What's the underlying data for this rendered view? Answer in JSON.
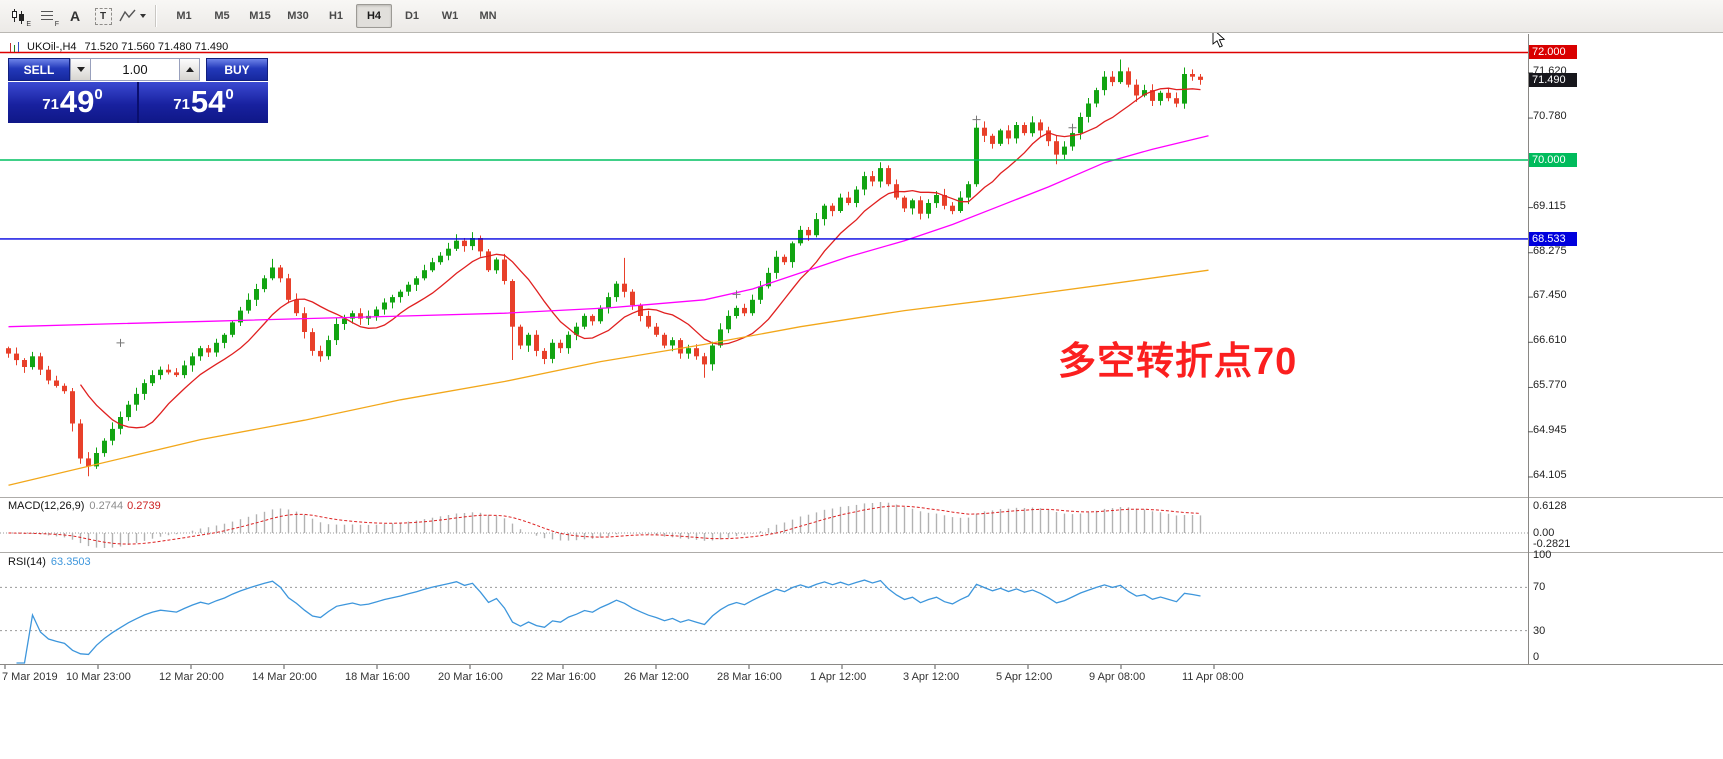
{
  "toolbar": {
    "tool_e_sub": "E",
    "tool_f_sub": "F",
    "text_tool_label": "A",
    "textbox_tool_label": "T",
    "timeframes": [
      {
        "label": "M1",
        "active": false
      },
      {
        "label": "M5",
        "active": false
      },
      {
        "label": "M15",
        "active": false
      },
      {
        "label": "M30",
        "active": false
      },
      {
        "label": "H1",
        "active": false
      },
      {
        "label": "H4",
        "active": true
      },
      {
        "label": "D1",
        "active": false
      },
      {
        "label": "W1",
        "active": false
      },
      {
        "label": "MN",
        "active": false
      }
    ]
  },
  "chart": {
    "header": {
      "symbol": "UKOil-,H4",
      "ohlc": "71.520 71.560 71.480 71.490"
    },
    "trade_panel": {
      "sell_label": "SELL",
      "buy_label": "BUY",
      "volume": "1.00",
      "sell_price": {
        "prefix": "71",
        "main": "49",
        "sup": "0"
      },
      "buy_price": {
        "prefix": "71",
        "main": "54",
        "sup": "0"
      }
    },
    "annotation": {
      "text": "多空转折点70",
      "color": "#fb1f1f"
    },
    "price_axis": {
      "ticks": [
        {
          "label": "71.620",
          "price": 71.62
        },
        {
          "label": "70.780",
          "price": 70.78
        },
        {
          "label": "69.115",
          "price": 69.115
        },
        {
          "label": "68.275",
          "price": 68.275
        },
        {
          "label": "67.450",
          "price": 67.45
        },
        {
          "label": "66.610",
          "price": 66.61
        },
        {
          "label": "65.770",
          "price": 65.77
        },
        {
          "label": "64.945",
          "price": 64.945
        },
        {
          "label": "64.105",
          "price": 64.105
        }
      ],
      "line_labels": [
        {
          "label": "72.000",
          "price": 72.0,
          "bg": "#d90000"
        },
        {
          "label": "71.490",
          "price": 71.49,
          "bg": "#17171c"
        },
        {
          "label": "70.000",
          "price": 70.0,
          "bg": "#00bb5c"
        },
        {
          "label": "68.533",
          "price": 68.533,
          "bg": "#0000dd"
        }
      ]
    }
  },
  "macd_panel": {
    "name": "MACD(12,26,9)",
    "value_main": "0.2744",
    "value_signal": "0.2739",
    "axis": [
      "0.6128",
      "0.00",
      "-0.2821"
    ]
  },
  "rsi_panel": {
    "name": "RSI(14)",
    "value": "63.3503",
    "axis": [
      100,
      70,
      30,
      0
    ],
    "levels": [
      70,
      30
    ]
  },
  "time_axis": {
    "labels": [
      "7 Mar 2019",
      "10 Mar 23:00",
      "12 Mar 20:00",
      "14 Mar 20:00",
      "18 Mar 16:00",
      "20 Mar 16:00",
      "22 Mar 16:00",
      "26 Mar 12:00",
      "28 Mar 16:00",
      "1 Apr 12:00",
      "3 Apr 12:00",
      "5 Apr 12:00",
      "9 Apr 08:00",
      "11 Apr 08:00"
    ]
  },
  "chart_data": {
    "type": "candlestick",
    "symbol": "UKOil-",
    "timeframe": "H4",
    "title": "UKOil-,H4 71.520 71.560 71.480 71.490",
    "displayed_ohlc": {
      "open": 71.52,
      "high": 71.56,
      "low": 71.48,
      "close": 71.49
    },
    "time_range": [
      "7 Mar 2019",
      "11 Apr 2019 08:00"
    ],
    "price_range_visible": [
      64.0,
      72.1
    ],
    "up_color": "#12a412",
    "down_color": "#e8402a",
    "first_open": 66.5,
    "closes": [
      66.4,
      66.28,
      66.15,
      66.35,
      66.1,
      65.9,
      65.8,
      65.7,
      65.1,
      64.45,
      64.3,
      64.55,
      64.78,
      65.0,
      65.22,
      65.45,
      65.65,
      65.85,
      66.0,
      66.1,
      66.05,
      66.0,
      66.18,
      66.35,
      66.5,
      66.42,
      66.6,
      66.75,
      66.98,
      67.2,
      67.4,
      67.6,
      67.8,
      68.0,
      67.8,
      67.4,
      67.15,
      66.8,
      66.45,
      66.35,
      66.65,
      66.95,
      67.05,
      67.15,
      67.05,
      67.1,
      67.22,
      67.35,
      67.45,
      67.55,
      67.68,
      67.8,
      67.95,
      68.1,
      68.22,
      68.35,
      68.5,
      68.4,
      68.55,
      68.3,
      67.95,
      68.15,
      67.75,
      66.9,
      66.55,
      66.75,
      66.45,
      66.3,
      66.6,
      66.5,
      66.75,
      66.9,
      67.1,
      67.0,
      67.25,
      67.45,
      67.7,
      67.55,
      67.3,
      67.1,
      66.9,
      66.75,
      66.55,
      66.65,
      66.4,
      66.5,
      66.35,
      66.2,
      66.55,
      66.85,
      67.1,
      67.25,
      67.15,
      67.4,
      67.65,
      67.9,
      68.2,
      68.1,
      68.45,
      68.7,
      68.6,
      68.9,
      69.15,
      69.05,
      69.3,
      69.2,
      69.45,
      69.7,
      69.6,
      69.85,
      69.55,
      69.3,
      69.1,
      69.25,
      69.0,
      69.2,
      69.35,
      69.15,
      69.05,
      69.3,
      69.55,
      70.6,
      70.45,
      70.3,
      70.55,
      70.4,
      70.65,
      70.5,
      70.7,
      70.55,
      70.35,
      70.1,
      70.25,
      70.5,
      70.8,
      71.05,
      71.3,
      71.55,
      71.45,
      71.65,
      71.4,
      71.2,
      71.3,
      71.1,
      71.25,
      71.15,
      71.05,
      71.6,
      71.55,
      71.49
    ],
    "wick_overrides": {
      "8": {
        "l": 64.95
      },
      "9": {
        "l": 64.35
      },
      "10": {
        "l": 64.12
      },
      "33": {
        "h": 68.16
      },
      "56": {
        "h": 68.62
      },
      "58": {
        "h": 68.66
      },
      "63": {
        "l": 66.28
      },
      "77": {
        "h": 68.18
      },
      "87": {
        "l": 65.95
      },
      "109": {
        "h": 69.96
      },
      "121": {
        "h": 70.78
      },
      "131": {
        "l": 69.92
      },
      "139": {
        "h": 71.87
      },
      "147": {
        "h": 71.72
      },
      "149": {
        "h": 71.6,
        "l": 71.4
      }
    },
    "hlines": [
      {
        "price": 72.0,
        "color": "#dd0000"
      },
      {
        "price": 70.0,
        "color": "#00c060"
      },
      {
        "price": 68.533,
        "color": "#0000e0"
      }
    ],
    "moving_averages": [
      {
        "name": "fast",
        "type": "sma",
        "period": 10,
        "color": "#e02020"
      },
      {
        "name": "mid",
        "color": "#ff00ff",
        "points": [
          [
            0,
            66.9
          ],
          [
            12,
            66.95
          ],
          [
            25,
            67.0
          ],
          [
            37,
            67.05
          ],
          [
            50,
            67.1
          ],
          [
            62,
            67.15
          ],
          [
            75,
            67.25
          ],
          [
            87,
            67.4
          ],
          [
            93,
            67.6
          ],
          [
            99,
            67.9
          ],
          [
            105,
            68.2
          ],
          [
            112,
            68.5
          ],
          [
            118,
            68.8
          ],
          [
            124,
            69.15
          ],
          [
            130,
            69.5
          ],
          [
            137,
            69.95
          ],
          [
            143,
            70.2
          ],
          [
            150,
            70.45
          ]
        ]
      },
      {
        "name": "slow",
        "color": "#f2a71a",
        "points": [
          [
            0,
            63.95
          ],
          [
            24,
            64.8
          ],
          [
            37,
            65.16
          ],
          [
            49,
            65.54
          ],
          [
            62,
            65.88
          ],
          [
            74,
            66.25
          ],
          [
            87,
            66.57
          ],
          [
            99,
            66.9
          ],
          [
            112,
            67.2
          ],
          [
            124,
            67.42
          ],
          [
            137,
            67.68
          ],
          [
            150,
            67.95
          ]
        ]
      }
    ],
    "markers": [
      {
        "bar": 14,
        "price": 66.6
      },
      {
        "bar": 91,
        "price": 67.5
      },
      {
        "bar": 121,
        "price": 70.75
      },
      {
        "bar": 133,
        "price": 70.6
      }
    ],
    "indicators": {
      "macd": {
        "fast": 12,
        "slow": 26,
        "signal": 9,
        "current_main": 0.2744,
        "current_signal": 0.2739,
        "axis_max": 0.6128,
        "axis_min": -0.2821
      },
      "rsi": {
        "period": 14,
        "current": 63.3503,
        "levels": [
          70,
          30
        ],
        "range": [
          0,
          100
        ]
      }
    }
  }
}
